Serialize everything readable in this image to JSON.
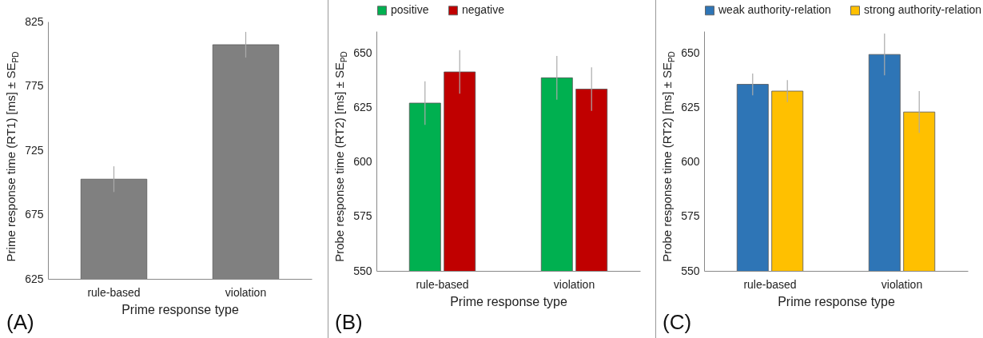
{
  "chart_data": [
    {
      "type": "bar",
      "categories": [
        "rule-based",
        "violation"
      ],
      "values": [
        702.5,
        807
      ],
      "errors": [
        10,
        10
      ],
      "color": "#808080",
      "xlabel": "Prime response type",
      "ylabel": "Prime response time (RT1) [ms] ± SE$_{PD}$",
      "ylim": [
        625,
        825
      ],
      "yticks": [
        625,
        675,
        725,
        775,
        825
      ],
      "legend": false,
      "annotations": [
        "(A)"
      ]
    },
    {
      "type": "bar",
      "categories": [
        "rule-based",
        "violation"
      ],
      "series": [
        {
          "name": "positive",
          "color": "#00b050",
          "values": [
            627,
            638.6
          ],
          "errors": [
            10,
            10
          ]
        },
        {
          "name": "negative",
          "color": "#c00000",
          "values": [
            641.3,
            633.4
          ],
          "errors": [
            10,
            10
          ]
        }
      ],
      "xlabel": "Prime response type",
      "ylabel": "Probe response time (RT2) [ms] ± SE$_{PD}$",
      "ylim": [
        550,
        660
      ],
      "yticks": [
        550,
        575,
        600,
        625,
        650
      ],
      "legend": "top",
      "annotations": [
        "(B)"
      ]
    },
    {
      "type": "bar",
      "categories": [
        "rule-based",
        "violation"
      ],
      "series": [
        {
          "name": "weak authority-relation",
          "color": "#2e75b6",
          "values": [
            635.6,
            649.3
          ],
          "errors": [
            5,
            9.6
          ]
        },
        {
          "name": "strong authority-relation",
          "color": "#ffc000",
          "values": [
            632.5,
            622.9
          ],
          "errors": [
            5,
            9.6
          ]
        }
      ],
      "xlabel": "Prime response type",
      "ylabel": "Probe response time (RT2) [ms] ± SE$_{PD}$",
      "ylim": [
        550,
        660
      ],
      "yticks": [
        550,
        575,
        600,
        625,
        650
      ],
      "legend": "top",
      "annotations": [
        "(C)"
      ]
    }
  ]
}
